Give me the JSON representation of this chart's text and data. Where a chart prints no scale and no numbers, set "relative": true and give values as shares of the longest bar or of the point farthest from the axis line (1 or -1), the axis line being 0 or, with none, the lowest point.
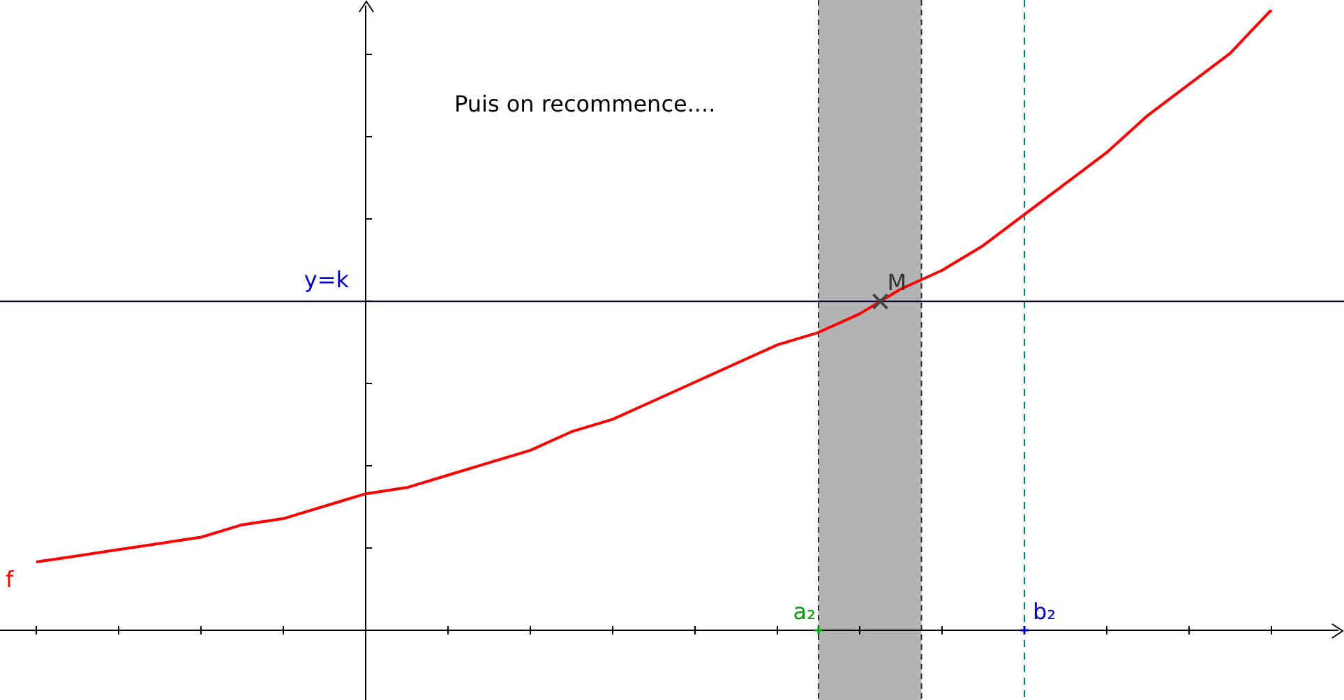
{
  "chart_data": {
    "type": "line",
    "relative": true,
    "legend": false,
    "grid": false,
    "categories": [
      null,
      null,
      null,
      null,
      null,
      null,
      null,
      null,
      null,
      null,
      null,
      null,
      null,
      null,
      null,
      null,
      null,
      null,
      null,
      null,
      null,
      null,
      null,
      null,
      null,
      null,
      null,
      null,
      null,
      null,
      null
    ],
    "series": [
      {
        "name": "f",
        "color": "#ff0000",
        "values": [
          0.11,
          0.12,
          0.13,
          0.14,
          0.15,
          0.17,
          0.18,
          0.2,
          0.22,
          0.23,
          0.25,
          0.27,
          0.29,
          0.32,
          0.34,
          0.37,
          0.4,
          0.43,
          0.46,
          0.48,
          0.51,
          0.55,
          0.58,
          0.62,
          0.67,
          0.72,
          0.77,
          0.83,
          0.88,
          0.93,
          1
        ]
      }
    ],
    "ref_lines": [
      {
        "axis": "y",
        "value": 0.53,
        "label": "y=k",
        "color": "#000033",
        "line_style": "solid"
      }
    ],
    "annotations": [
      "Puis on recommence....",
      "a₂",
      "b₂",
      {
        "text": "M",
        "y": 0.53
      }
    ]
  }
}
